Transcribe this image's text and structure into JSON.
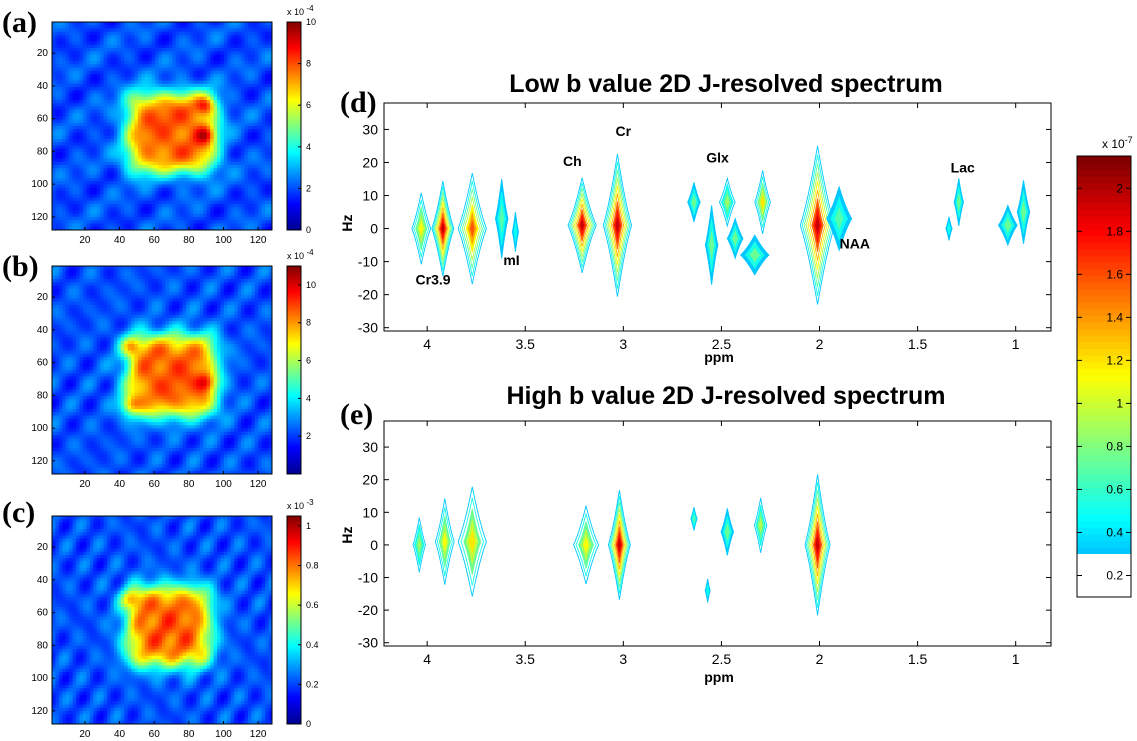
{
  "colors": {
    "jet_low": "#00008f",
    "jet_high": "#800000",
    "accent": "#ff0000"
  },
  "chart_data": [
    {
      "type": "heatmap",
      "panel_label": "(a)",
      "x_ticks": [
        "20",
        "40",
        "60",
        "80",
        "100",
        "120"
      ],
      "y_ticks": [
        "20",
        "40",
        "60",
        "80",
        "100",
        "120"
      ],
      "xlim": [
        1,
        128
      ],
      "ylim": [
        1,
        128
      ],
      "colorbar": {
        "exponent_label": "x 10",
        "exponent": "-4",
        "ticks": [
          "0",
          "2",
          "4",
          "6",
          "8",
          "10"
        ],
        "range": [
          0,
          10
        ]
      },
      "hotspots": [
        [
          90,
          52
        ],
        [
          90,
          70
        ]
      ],
      "square": {
        "x0": 45,
        "x1": 95,
        "y0": 45,
        "y1": 92
      }
    },
    {
      "type": "heatmap",
      "panel_label": "(b)",
      "x_ticks": [
        "20",
        "40",
        "60",
        "80",
        "100",
        "120"
      ],
      "y_ticks": [
        "20",
        "40",
        "60",
        "80",
        "100",
        "120"
      ],
      "xlim": [
        1,
        128
      ],
      "ylim": [
        1,
        128
      ],
      "colorbar": {
        "exponent_label": "x 10",
        "exponent": "-4",
        "ticks": [
          "2",
          "4",
          "6",
          "8",
          "10"
        ],
        "range": [
          0,
          11
        ]
      },
      "hotspots": [
        [
          46,
          50
        ],
        [
          90,
          72
        ],
        [
          46,
          86
        ]
      ],
      "square": {
        "x0": 45,
        "x1": 95,
        "y0": 44,
        "y1": 92
      }
    },
    {
      "type": "heatmap",
      "panel_label": "(c)",
      "x_ticks": [
        "20",
        "40",
        "60",
        "80",
        "100",
        "120"
      ],
      "y_ticks": [
        "20",
        "40",
        "60",
        "80",
        "100",
        "120"
      ],
      "xlim": [
        1,
        128
      ],
      "ylim": [
        1,
        128
      ],
      "colorbar": {
        "exponent_label": "x 10",
        "exponent": "-3",
        "ticks": [
          "0",
          "0.2",
          "0.4",
          "0.6",
          "0.8",
          "1"
        ],
        "range": [
          0,
          1.05
        ]
      },
      "hotspots": [
        [
          46,
          52
        ]
      ],
      "square": {
        "x0": 45,
        "x1": 92,
        "y0": 45,
        "y1": 92
      }
    },
    {
      "type": "contour",
      "panel_label": "(d)",
      "title": "Low b value 2D J-resolved spectrum",
      "xlabel": "ppm",
      "ylabel": "Hz",
      "x_ticks": [
        "4",
        "3.5",
        "3",
        "2.5",
        "2",
        "1.5",
        "1"
      ],
      "y_ticks": [
        "30",
        "20",
        "10",
        "0",
        "-10",
        "-20",
        "-30"
      ],
      "xlim": [
        4.22,
        0.82
      ],
      "ylim": [
        -31,
        38
      ],
      "peak_labels": [
        {
          "text": "Cr3.9",
          "ppm": 3.97,
          "hz": -17
        },
        {
          "text": "mI",
          "ppm": 3.57,
          "hz": -11
        },
        {
          "text": "Ch",
          "ppm": 3.26,
          "hz": 19
        },
        {
          "text": "Cr",
          "ppm": 3.0,
          "hz": 28
        },
        {
          "text": "Glx",
          "ppm": 2.52,
          "hz": 20
        },
        {
          "text": "NAA",
          "ppm": 1.82,
          "hz": -6
        },
        {
          "text": "Lac",
          "ppm": 1.27,
          "hz": 17
        }
      ],
      "peaks": [
        {
          "ppm": 4.03,
          "hz": 0,
          "amp": 0.55,
          "w": 0.03,
          "h": 9
        },
        {
          "ppm": 3.92,
          "hz": 0,
          "amp": 1.0,
          "w": 0.035,
          "h": 12
        },
        {
          "ppm": 3.77,
          "hz": 0,
          "amp": 0.8,
          "w": 0.045,
          "h": 14
        },
        {
          "ppm": 3.62,
          "hz": 3,
          "amp": 0.3,
          "w": 0.02,
          "h": 10
        },
        {
          "ppm": 3.55,
          "hz": -1,
          "amp": 0.2,
          "w": 0.01,
          "h": 5
        },
        {
          "ppm": 3.21,
          "hz": 1,
          "amp": 1.0,
          "w": 0.045,
          "h": 12
        },
        {
          "ppm": 3.03,
          "hz": 1,
          "amp": 1.0,
          "w": 0.045,
          "h": 18
        },
        {
          "ppm": 2.64,
          "hz": 8,
          "amp": 0.35,
          "w": 0.02,
          "h": 5
        },
        {
          "ppm": 2.55,
          "hz": -5,
          "amp": 0.35,
          "w": 0.02,
          "h": 10
        },
        {
          "ppm": 2.47,
          "hz": 8,
          "amp": 0.4,
          "w": 0.025,
          "h": 6
        },
        {
          "ppm": 2.43,
          "hz": -3,
          "amp": 0.35,
          "w": 0.025,
          "h": 5
        },
        {
          "ppm": 2.33,
          "hz": -8,
          "amp": 0.35,
          "w": 0.045,
          "h": 5
        },
        {
          "ppm": 2.29,
          "hz": 8,
          "amp": 0.6,
          "w": 0.025,
          "h": 8
        },
        {
          "ppm": 2.01,
          "hz": 1,
          "amp": 1.0,
          "w": 0.055,
          "h": 20
        },
        {
          "ppm": 1.9,
          "hz": 3,
          "amp": 0.3,
          "w": 0.04,
          "h": 8
        },
        {
          "ppm": 1.34,
          "hz": 0,
          "amp": 0.2,
          "w": 0.01,
          "h": 3
        },
        {
          "ppm": 1.29,
          "hz": 8,
          "amp": 0.35,
          "w": 0.015,
          "h": 6
        },
        {
          "ppm": 1.04,
          "hz": 1,
          "amp": 0.35,
          "w": 0.03,
          "h": 5
        },
        {
          "ppm": 0.96,
          "hz": 5,
          "amp": 0.35,
          "w": 0.02,
          "h": 8
        }
      ]
    },
    {
      "type": "contour",
      "panel_label": "(e)",
      "title": "High b value 2D J-resolved spectrum",
      "xlabel": "ppm",
      "ylabel": "Hz",
      "x_ticks": [
        "4",
        "3.5",
        "3",
        "2.5",
        "2",
        "1.5",
        "1"
      ],
      "y_ticks": [
        "30",
        "20",
        "10",
        "0",
        "-10",
        "-20",
        "-30"
      ],
      "xlim": [
        4.22,
        0.82
      ],
      "ylim": [
        -31,
        38
      ],
      "peak_labels": [],
      "peaks": [
        {
          "ppm": 4.04,
          "hz": 0,
          "amp": 0.4,
          "w": 0.02,
          "h": 7
        },
        {
          "ppm": 3.91,
          "hz": 1,
          "amp": 0.55,
          "w": 0.03,
          "h": 11
        },
        {
          "ppm": 3.77,
          "hz": 1,
          "amp": 0.6,
          "w": 0.045,
          "h": 14
        },
        {
          "ppm": 3.19,
          "hz": 0,
          "amp": 0.55,
          "w": 0.04,
          "h": 10
        },
        {
          "ppm": 3.02,
          "hz": 0,
          "amp": 1.0,
          "w": 0.035,
          "h": 14
        },
        {
          "ppm": 2.64,
          "hz": 8,
          "amp": 0.3,
          "w": 0.01,
          "h": 3
        },
        {
          "ppm": 2.47,
          "hz": 4,
          "amp": 0.35,
          "w": 0.02,
          "h": 6
        },
        {
          "ppm": 2.3,
          "hz": 6,
          "amp": 0.45,
          "w": 0.02,
          "h": 7
        },
        {
          "ppm": 2.01,
          "hz": 0,
          "amp": 1.0,
          "w": 0.04,
          "h": 18
        },
        {
          "ppm": 2.57,
          "hz": -14,
          "amp": 0.2,
          "w": 0.008,
          "h": 3
        }
      ]
    },
    {
      "type": "colorbar",
      "exponent_label": "x 10",
      "exponent": "-7",
      "ticks": [
        "0.2",
        "0.4",
        "0.6",
        "0.8",
        "1",
        "1.2",
        "1.4",
        "1.6",
        "1.8",
        "2"
      ],
      "range": [
        0.1,
        2.15
      ],
      "blank_below": 0.3
    }
  ]
}
